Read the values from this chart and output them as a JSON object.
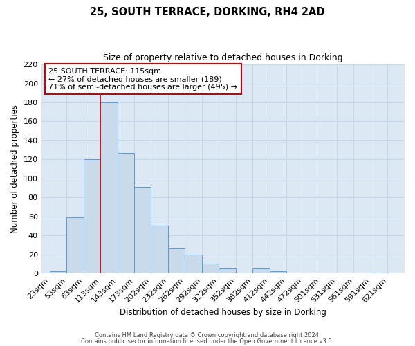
{
  "title": "25, SOUTH TERRACE, DORKING, RH4 2AD",
  "subtitle": "Size of property relative to detached houses in Dorking",
  "xlabel": "Distribution of detached houses by size in Dorking",
  "ylabel": "Number of detached properties",
  "bar_left_edges": [
    23,
    53,
    83,
    113,
    143,
    173,
    202,
    232,
    262,
    292,
    322,
    352,
    382,
    412,
    442,
    472,
    501,
    531,
    561,
    591
  ],
  "bar_widths": [
    30,
    30,
    30,
    30,
    30,
    29,
    30,
    30,
    30,
    30,
    30,
    30,
    30,
    30,
    30,
    29,
    30,
    30,
    30,
    30
  ],
  "bar_heights": [
    2,
    59,
    120,
    180,
    127,
    91,
    50,
    26,
    20,
    10,
    5,
    0,
    5,
    2,
    0,
    0,
    0,
    0,
    0,
    1
  ],
  "bar_color": "#c9daea",
  "bar_edge_color": "#5b9bd5",
  "grid_color": "#c8d8ea",
  "background_color": "#dce9f5",
  "vline_x": 113,
  "vline_color": "#cc0000",
  "annotation_text": "25 SOUTH TERRACE: 115sqm\n← 27% of detached houses are smaller (189)\n71% of semi-detached houses are larger (495) →",
  "annotation_box_color": "#ffffff",
  "annotation_box_edge": "#cc0000",
  "tick_labels": [
    "23sqm",
    "53sqm",
    "83sqm",
    "113sqm",
    "143sqm",
    "173sqm",
    "202sqm",
    "232sqm",
    "262sqm",
    "292sqm",
    "322sqm",
    "352sqm",
    "382sqm",
    "412sqm",
    "442sqm",
    "472sqm",
    "501sqm",
    "531sqm",
    "561sqm",
    "591sqm",
    "621sqm"
  ],
  "tick_positions": [
    23,
    53,
    83,
    113,
    143,
    173,
    202,
    232,
    262,
    292,
    322,
    352,
    382,
    412,
    442,
    472,
    501,
    531,
    561,
    591,
    621
  ],
  "ylim": [
    0,
    220
  ],
  "yticks": [
    0,
    20,
    40,
    60,
    80,
    100,
    120,
    140,
    160,
    180,
    200,
    220
  ],
  "xlim": [
    8,
    651
  ],
  "footer_line1": "Contains HM Land Registry data © Crown copyright and database right 2024.",
  "footer_line2": "Contains public sector information licensed under the Open Government Licence v3.0."
}
